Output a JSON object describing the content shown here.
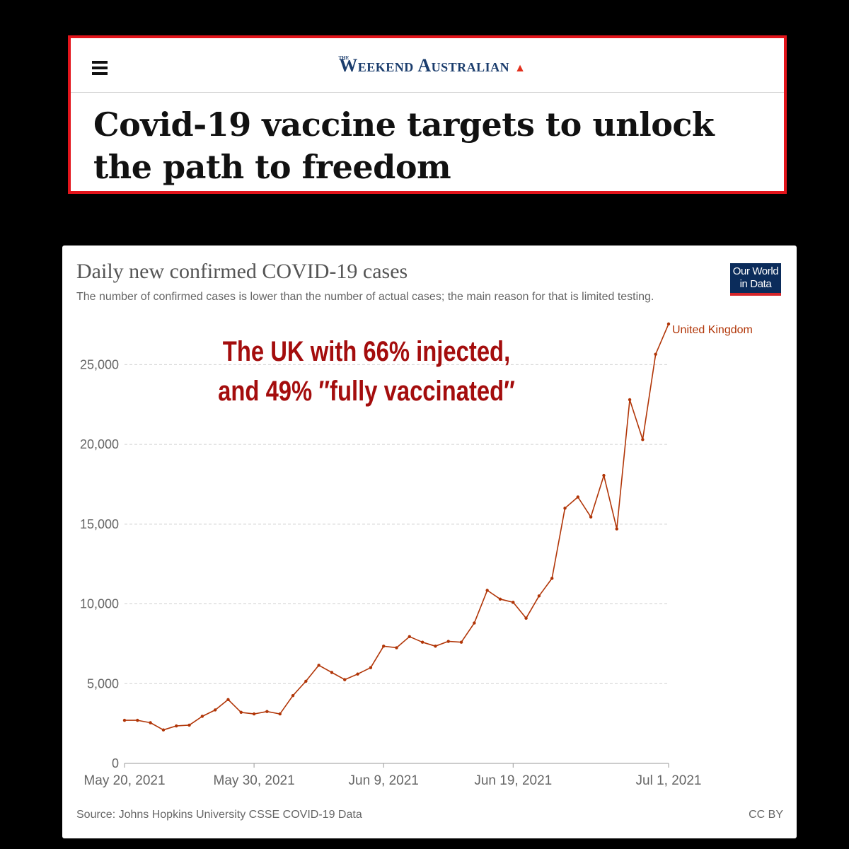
{
  "header": {
    "masthead": {
      "the": "THE",
      "name": "Weekend Australian"
    },
    "headline": "Covid-19 vaccine targets to unlock the path to freedom"
  },
  "chart_card": {
    "title": "Daily new confirmed COVID-19 cases",
    "subtitle": "The number of confirmed cases is lower than the number of actual cases; the main reason for that is limited testing.",
    "logo": {
      "line1": "Our World",
      "line2": "in Data"
    },
    "source": "Source: Johns Hopkins University CSSE COVID-19 Data",
    "license": "CC BY",
    "annotation": {
      "line1": "The UK with 66% injected,",
      "line2": "and 49% ″fully vaccinated″"
    }
  },
  "colors": {
    "series": "#b13507",
    "annotation": "#a40d0d",
    "header_border": "#e3141b",
    "masthead": "#1b3d6d",
    "logo_bg": "#0b2c5b"
  },
  "chart_data": {
    "type": "line",
    "title": "Daily new confirmed COVID-19 cases",
    "subtitle": "The number of confirmed cases is lower than the number of actual cases; the main reason for that is limited testing.",
    "x_start": "2021-05-20",
    "x_tick_labels": [
      "May 20, 2021",
      "May 30, 2021",
      "Jun 9, 2021",
      "Jun 19, 2021",
      "Jul 1, 2021"
    ],
    "x_tick_days": [
      0,
      10,
      20,
      30,
      42
    ],
    "y_ticks": [
      0,
      5000,
      10000,
      15000,
      20000,
      25000
    ],
    "y_tick_labels": [
      "0",
      "5,000",
      "10,000",
      "15,000",
      "20,000",
      "25,000"
    ],
    "ylim": [
      0,
      27500
    ],
    "gridlines": true,
    "series": [
      {
        "name": "United Kingdom",
        "color": "#b13507",
        "values": [
          2700,
          2700,
          2550,
          2100,
          2350,
          2400,
          2950,
          3350,
          4000,
          3200,
          3100,
          3250,
          3100,
          4250,
          5150,
          6150,
          5700,
          5250,
          5600,
          6000,
          7350,
          7250,
          7950,
          7600,
          7350,
          7650,
          7600,
          8800,
          10850,
          10300,
          10100,
          9100,
          10500,
          11600,
          16000,
          16700,
          15450,
          18050,
          14700,
          22800,
          20300,
          25650,
          27550
        ]
      }
    ]
  }
}
